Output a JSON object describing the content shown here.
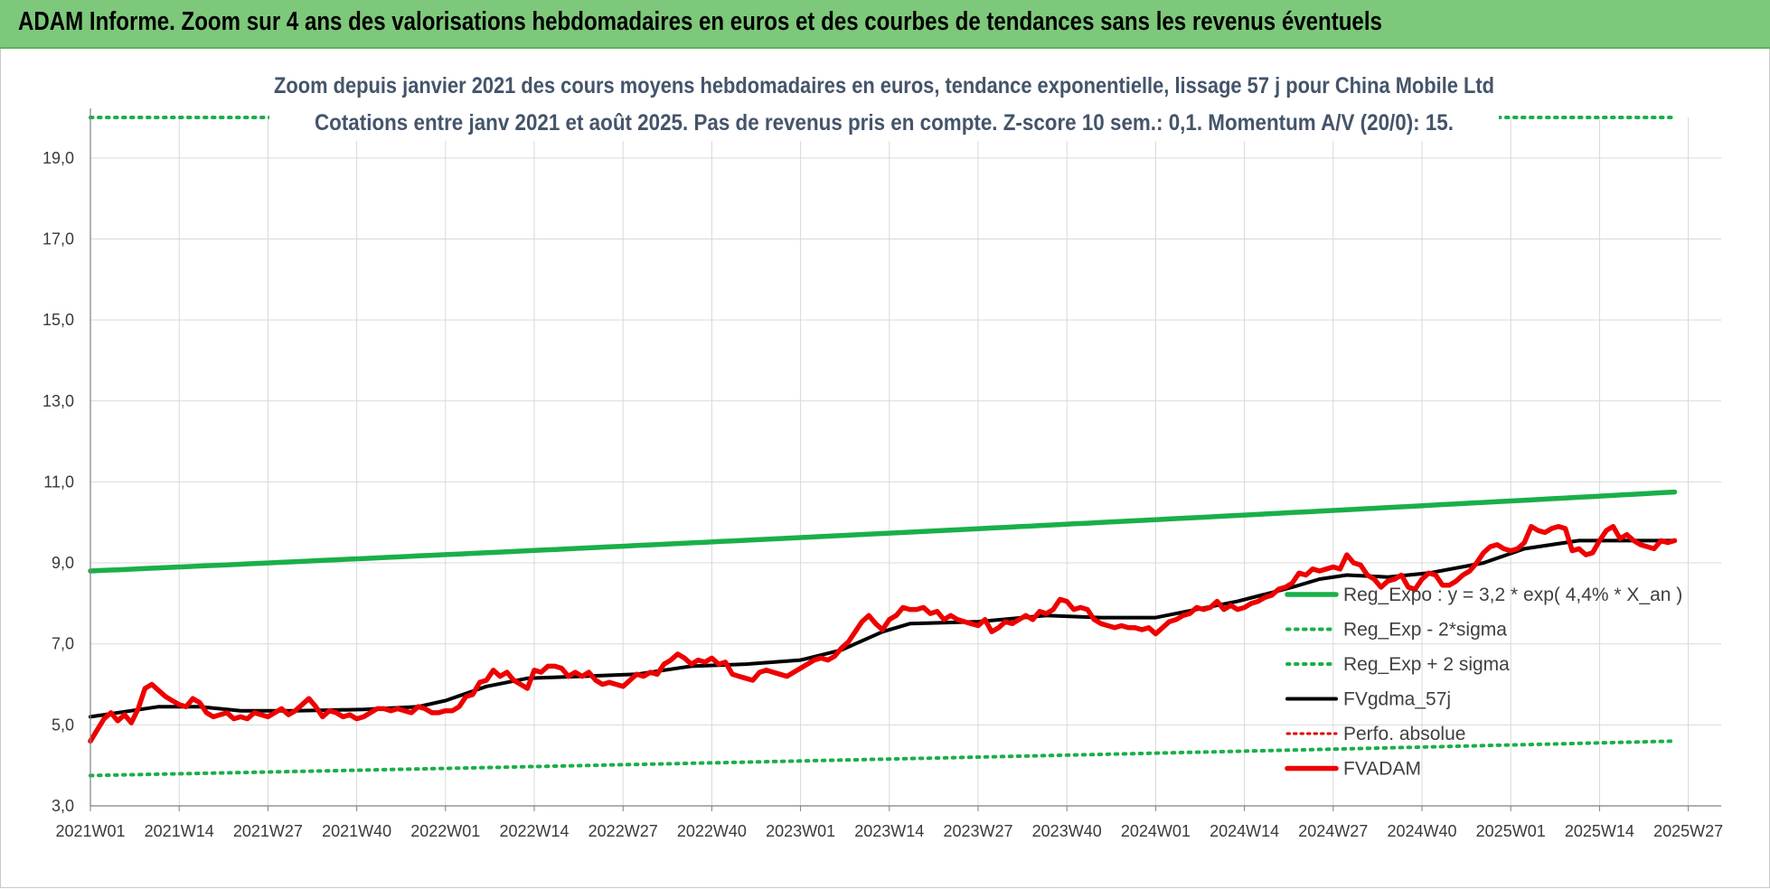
{
  "banner": {
    "title": "ADAM Informe. Zoom sur 4 ans des valorisations hebdomadaires en euros et des courbes de tendances sans les revenus éventuels"
  },
  "chart_data": {
    "type": "line",
    "subtitle_line1": "Zoom depuis janvier 2021 des cours moyens hebdomadaires en euros, tendance exponentielle, lissage 57 j pour China Mobile Ltd",
    "subtitle_line2": "Cotations entre janv 2021 et août 2025.  Pas de revenus pris en compte. Z-score 10 sem.: 0,1. Momentum A/V (20/0): 15.",
    "ylim": [
      3.0,
      20.0
    ],
    "y_ticks": [
      "3,0",
      "5,0",
      "7,0",
      "9,0",
      "11,0",
      "13,0",
      "15,0",
      "17,0",
      "19,0"
    ],
    "x_ticks": [
      "2021W01",
      "2021W14",
      "2021W27",
      "2021W40",
      "2022W01",
      "2022W14",
      "2022W27",
      "2022W40",
      "2023W01",
      "2023W14",
      "2023W27",
      "2023W40",
      "2024W01",
      "2024W14",
      "2024W27",
      "2024W40",
      "2025W01",
      "2025W14",
      "2025W27"
    ],
    "grid": true,
    "legend_position": "right",
    "colors": {
      "reg_expo": "#1aaf4a",
      "sigma": "#1aaf4a",
      "fvgdma": "#000000",
      "perfo": "#e00000",
      "fvadam": "#ee0000"
    },
    "series": [
      {
        "name": "Reg_Expo : y = 3,2 * exp( 4,4% *  X_an )",
        "style": "solid-thick-green",
        "start": 8.8,
        "end": 10.75
      },
      {
        "name": "Reg_Exp - 2*sigma",
        "style": "dotted-green",
        "start": 3.75,
        "end": 4.6
      },
      {
        "name": "Reg_Exp + 2 sigma",
        "style": "dotted-green",
        "start": 20.0,
        "end": 20.0
      },
      {
        "name": "FVgdma_57j",
        "style": "solid-black",
        "points": [
          [
            0,
            5.2
          ],
          [
            6,
            5.35
          ],
          [
            10,
            5.45
          ],
          [
            16,
            5.45
          ],
          [
            22,
            5.35
          ],
          [
            30,
            5.35
          ],
          [
            40,
            5.38
          ],
          [
            48,
            5.45
          ],
          [
            52,
            5.6
          ],
          [
            58,
            5.95
          ],
          [
            64,
            6.15
          ],
          [
            72,
            6.2
          ],
          [
            80,
            6.25
          ],
          [
            88,
            6.45
          ],
          [
            96,
            6.5
          ],
          [
            104,
            6.6
          ],
          [
            110,
            6.85
          ],
          [
            116,
            7.3
          ],
          [
            120,
            7.5
          ],
          [
            130,
            7.55
          ],
          [
            140,
            7.7
          ],
          [
            148,
            7.65
          ],
          [
            156,
            7.65
          ],
          [
            162,
            7.85
          ],
          [
            168,
            8.05
          ],
          [
            176,
            8.4
          ],
          [
            180,
            8.6
          ],
          [
            184,
            8.7
          ],
          [
            190,
            8.65
          ],
          [
            196,
            8.75
          ],
          [
            204,
            9.0
          ],
          [
            210,
            9.35
          ],
          [
            218,
            9.55
          ],
          [
            226,
            9.55
          ],
          [
            232,
            9.55
          ]
        ]
      },
      {
        "name": "Perfo. absolue",
        "style": "dotted-red",
        "points": []
      },
      {
        "name": "FVADAM",
        "style": "solid-thick-red",
        "points": [
          [
            0,
            4.6
          ],
          [
            2,
            5.15
          ],
          [
            3,
            5.3
          ],
          [
            4,
            5.1
          ],
          [
            5,
            5.25
          ],
          [
            6,
            5.05
          ],
          [
            7,
            5.4
          ],
          [
            8,
            5.9
          ],
          [
            9,
            6.0
          ],
          [
            10,
            5.85
          ],
          [
            11,
            5.7
          ],
          [
            12,
            5.6
          ],
          [
            13,
            5.5
          ],
          [
            14,
            5.45
          ],
          [
            15,
            5.65
          ],
          [
            16,
            5.55
          ],
          [
            17,
            5.3
          ],
          [
            18,
            5.2
          ],
          [
            19,
            5.25
          ],
          [
            20,
            5.3
          ],
          [
            21,
            5.15
          ],
          [
            22,
            5.2
          ],
          [
            23,
            5.15
          ],
          [
            24,
            5.3
          ],
          [
            25,
            5.25
          ],
          [
            26,
            5.2
          ],
          [
            27,
            5.3
          ],
          [
            28,
            5.4
          ],
          [
            29,
            5.25
          ],
          [
            30,
            5.35
          ],
          [
            31,
            5.5
          ],
          [
            32,
            5.65
          ],
          [
            33,
            5.45
          ],
          [
            34,
            5.2
          ],
          [
            35,
            5.35
          ],
          [
            36,
            5.3
          ],
          [
            37,
            5.2
          ],
          [
            38,
            5.25
          ],
          [
            39,
            5.15
          ],
          [
            40,
            5.2
          ],
          [
            41,
            5.3
          ],
          [
            42,
            5.4
          ],
          [
            43,
            5.4
          ],
          [
            44,
            5.35
          ],
          [
            45,
            5.4
          ],
          [
            46,
            5.35
          ],
          [
            47,
            5.3
          ],
          [
            48,
            5.45
          ],
          [
            49,
            5.4
          ],
          [
            50,
            5.3
          ],
          [
            51,
            5.3
          ],
          [
            52,
            5.35
          ],
          [
            53,
            5.35
          ],
          [
            54,
            5.45
          ],
          [
            55,
            5.7
          ],
          [
            56,
            5.75
          ],
          [
            57,
            6.05
          ],
          [
            58,
            6.1
          ],
          [
            59,
            6.35
          ],
          [
            60,
            6.2
          ],
          [
            61,
            6.3
          ],
          [
            62,
            6.1
          ],
          [
            63,
            6.0
          ],
          [
            64,
            5.9
          ],
          [
            65,
            6.35
          ],
          [
            66,
            6.3
          ],
          [
            67,
            6.45
          ],
          [
            68,
            6.45
          ],
          [
            69,
            6.4
          ],
          [
            70,
            6.2
          ],
          [
            71,
            6.3
          ],
          [
            72,
            6.2
          ],
          [
            73,
            6.3
          ],
          [
            74,
            6.1
          ],
          [
            75,
            6.0
          ],
          [
            76,
            6.05
          ],
          [
            77,
            6.0
          ],
          [
            78,
            5.95
          ],
          [
            79,
            6.1
          ],
          [
            80,
            6.25
          ],
          [
            81,
            6.2
          ],
          [
            82,
            6.3
          ],
          [
            83,
            6.25
          ],
          [
            84,
            6.5
          ],
          [
            85,
            6.6
          ],
          [
            86,
            6.75
          ],
          [
            87,
            6.65
          ],
          [
            88,
            6.5
          ],
          [
            89,
            6.6
          ],
          [
            90,
            6.55
          ],
          [
            91,
            6.65
          ],
          [
            92,
            6.5
          ],
          [
            93,
            6.55
          ],
          [
            94,
            6.25
          ],
          [
            95,
            6.2
          ],
          [
            96,
            6.15
          ],
          [
            97,
            6.1
          ],
          [
            98,
            6.3
          ],
          [
            99,
            6.35
          ],
          [
            100,
            6.3
          ],
          [
            101,
            6.25
          ],
          [
            102,
            6.2
          ],
          [
            103,
            6.3
          ],
          [
            104,
            6.4
          ],
          [
            105,
            6.5
          ],
          [
            106,
            6.6
          ],
          [
            107,
            6.65
          ],
          [
            108,
            6.6
          ],
          [
            109,
            6.7
          ],
          [
            110,
            6.9
          ],
          [
            111,
            7.05
          ],
          [
            112,
            7.3
          ],
          [
            113,
            7.55
          ],
          [
            114,
            7.7
          ],
          [
            115,
            7.5
          ],
          [
            116,
            7.35
          ],
          [
            117,
            7.6
          ],
          [
            118,
            7.7
          ],
          [
            119,
            7.9
          ],
          [
            120,
            7.85
          ],
          [
            121,
            7.85
          ],
          [
            122,
            7.9
          ],
          [
            123,
            7.75
          ],
          [
            124,
            7.8
          ],
          [
            125,
            7.6
          ],
          [
            126,
            7.7
          ],
          [
            127,
            7.6
          ],
          [
            128,
            7.55
          ],
          [
            129,
            7.5
          ],
          [
            130,
            7.45
          ],
          [
            131,
            7.6
          ],
          [
            132,
            7.3
          ],
          [
            133,
            7.4
          ],
          [
            134,
            7.55
          ],
          [
            135,
            7.5
          ],
          [
            136,
            7.6
          ],
          [
            137,
            7.7
          ],
          [
            138,
            7.6
          ],
          [
            139,
            7.8
          ],
          [
            140,
            7.75
          ],
          [
            141,
            7.85
          ],
          [
            142,
            8.1
          ],
          [
            143,
            8.05
          ],
          [
            144,
            7.85
          ],
          [
            145,
            7.9
          ],
          [
            146,
            7.85
          ],
          [
            147,
            7.6
          ],
          [
            148,
            7.5
          ],
          [
            149,
            7.45
          ],
          [
            150,
            7.4
          ],
          [
            151,
            7.45
          ],
          [
            152,
            7.4
          ],
          [
            153,
            7.4
          ],
          [
            154,
            7.35
          ],
          [
            155,
            7.4
          ],
          [
            156,
            7.25
          ],
          [
            157,
            7.4
          ],
          [
            158,
            7.55
          ],
          [
            159,
            7.6
          ],
          [
            160,
            7.7
          ],
          [
            161,
            7.75
          ],
          [
            162,
            7.9
          ],
          [
            163,
            7.85
          ],
          [
            164,
            7.9
          ],
          [
            165,
            8.05
          ],
          [
            166,
            7.85
          ],
          [
            167,
            7.95
          ],
          [
            168,
            7.85
          ],
          [
            169,
            7.9
          ],
          [
            170,
            8.0
          ],
          [
            171,
            8.05
          ],
          [
            172,
            8.15
          ],
          [
            173,
            8.2
          ],
          [
            174,
            8.35
          ],
          [
            175,
            8.4
          ],
          [
            176,
            8.5
          ],
          [
            177,
            8.75
          ],
          [
            178,
            8.7
          ],
          [
            179,
            8.85
          ],
          [
            180,
            8.8
          ],
          [
            181,
            8.85
          ],
          [
            182,
            8.9
          ],
          [
            183,
            8.85
          ],
          [
            184,
            9.2
          ],
          [
            185,
            9.0
          ],
          [
            186,
            8.95
          ],
          [
            187,
            8.7
          ],
          [
            188,
            8.6
          ],
          [
            189,
            8.4
          ],
          [
            190,
            8.55
          ],
          [
            191,
            8.6
          ],
          [
            192,
            8.7
          ],
          [
            193,
            8.4
          ],
          [
            194,
            8.35
          ],
          [
            195,
            8.6
          ],
          [
            196,
            8.75
          ],
          [
            197,
            8.7
          ],
          [
            198,
            8.45
          ],
          [
            199,
            8.45
          ],
          [
            200,
            8.55
          ],
          [
            201,
            8.7
          ],
          [
            202,
            8.8
          ],
          [
            203,
            9.0
          ],
          [
            204,
            9.25
          ],
          [
            205,
            9.4
          ],
          [
            206,
            9.45
          ],
          [
            207,
            9.35
          ],
          [
            208,
            9.3
          ],
          [
            209,
            9.35
          ],
          [
            210,
            9.5
          ],
          [
            211,
            9.9
          ],
          [
            212,
            9.8
          ],
          [
            213,
            9.75
          ],
          [
            214,
            9.85
          ],
          [
            215,
            9.9
          ],
          [
            216,
            9.85
          ],
          [
            217,
            9.3
          ],
          [
            218,
            9.35
          ],
          [
            219,
            9.2
          ],
          [
            220,
            9.25
          ],
          [
            221,
            9.55
          ],
          [
            222,
            9.8
          ],
          [
            223,
            9.9
          ],
          [
            224,
            9.6
          ],
          [
            225,
            9.7
          ],
          [
            226,
            9.55
          ],
          [
            227,
            9.45
          ],
          [
            228,
            9.4
          ],
          [
            229,
            9.35
          ],
          [
            230,
            9.55
          ],
          [
            231,
            9.5
          ],
          [
            232,
            9.55
          ]
        ]
      }
    ]
  }
}
